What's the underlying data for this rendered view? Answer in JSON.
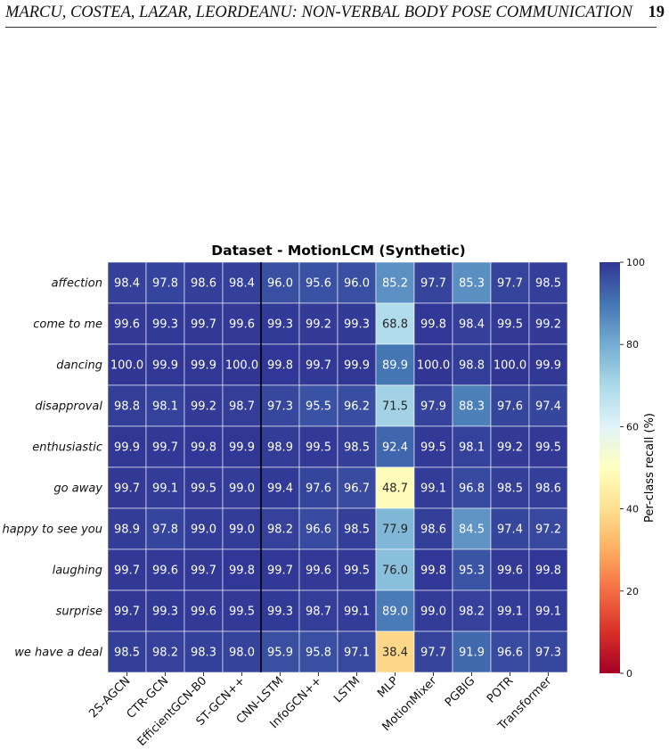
{
  "header": {
    "running_title": "MARCU, COSTEA, LAZAR, LEORDEANU: NON-VERBAL BODY POSE COMMUNICATION",
    "page_number": "19"
  },
  "chart_data": {
    "type": "heatmap",
    "title": "Dataset - MotionLCM (Synthetic)",
    "columns": [
      "2S-AGCN",
      "CTR-GCN",
      "EfficientGCN-B0",
      "ST-GCN++",
      "CNN-LSTM",
      "InfoGCN++",
      "LSTM",
      "MLP",
      "MotionMixer",
      "PGBIG",
      "POTR",
      "Transformer"
    ],
    "rows": [
      "affection",
      "come to me",
      "dancing",
      "disapproval",
      "enthusiastic",
      "go away",
      "happy to see you",
      "laughing",
      "surprise",
      "we have a deal"
    ],
    "values": [
      [
        98.4,
        97.8,
        98.6,
        98.4,
        96.0,
        95.6,
        96.0,
        85.2,
        97.7,
        85.3,
        97.7,
        98.5
      ],
      [
        99.6,
        99.3,
        99.7,
        99.6,
        99.3,
        99.2,
        99.3,
        68.8,
        99.8,
        98.4,
        99.5,
        99.2
      ],
      [
        100.0,
        99.9,
        99.9,
        100.0,
        99.8,
        99.7,
        99.9,
        89.9,
        100.0,
        98.8,
        100.0,
        99.9
      ],
      [
        98.8,
        98.1,
        99.2,
        98.7,
        97.3,
        95.5,
        96.2,
        71.5,
        97.9,
        88.3,
        97.6,
        97.4
      ],
      [
        99.9,
        99.7,
        99.8,
        99.9,
        98.9,
        99.5,
        98.5,
        92.4,
        99.5,
        98.1,
        99.2,
        99.5
      ],
      [
        99.7,
        99.1,
        99.5,
        99.0,
        99.4,
        97.6,
        96.7,
        48.7,
        99.1,
        96.8,
        98.5,
        98.6
      ],
      [
        98.9,
        97.8,
        99.0,
        99.0,
        98.2,
        96.6,
        98.5,
        77.9,
        98.6,
        84.5,
        97.4,
        97.2
      ],
      [
        99.7,
        99.6,
        99.7,
        99.8,
        99.7,
        99.6,
        99.5,
        76.0,
        99.8,
        95.3,
        99.6,
        99.8
      ],
      [
        99.7,
        99.3,
        99.6,
        99.5,
        99.3,
        98.7,
        99.1,
        89.0,
        99.0,
        98.2,
        99.1,
        99.1
      ],
      [
        98.5,
        98.2,
        98.3,
        98.0,
        95.9,
        95.8,
        97.1,
        38.4,
        97.7,
        91.9,
        96.6,
        97.3
      ]
    ],
    "value_format": "one decimal",
    "colormap": "RdYlBu",
    "color_range": [
      0,
      100
    ],
    "colorbar_label": "Per-class recall (%)",
    "colorbar_ticks": [
      "0",
      "20",
      "40",
      "60",
      "80",
      "100"
    ],
    "group_separator_after_column": "ST-GCN++",
    "colormap_stops": [
      "#a50026",
      "#d73027",
      "#f46d43",
      "#fdae61",
      "#fee090",
      "#ffffbf",
      "#e0f3f8",
      "#abd9e9",
      "#74add1",
      "#4575b4",
      "#313695"
    ]
  }
}
